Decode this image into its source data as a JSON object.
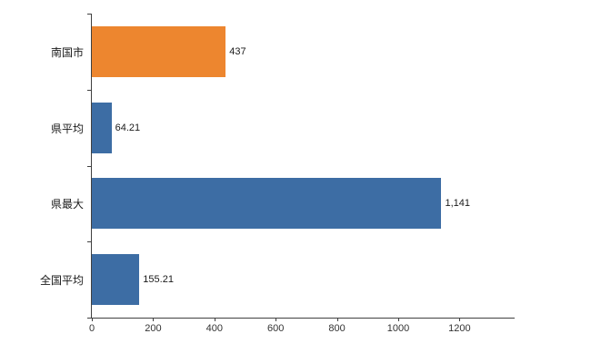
{
  "chart_data": {
    "type": "bar",
    "orientation": "horizontal",
    "title": "",
    "xlabel": "",
    "ylabel": "",
    "categories": [
      "南国市",
      "県平均",
      "県最大",
      "全国平均"
    ],
    "values": [
      437,
      64.21,
      1141,
      155.21
    ],
    "value_labels": [
      "437",
      "64.21",
      "1,141",
      "155.21"
    ],
    "bar_colors": [
      "#ED862F",
      "#3D6DA4",
      "#3D6DA4",
      "#3D6DA4"
    ],
    "x_ticks": [
      0,
      200,
      400,
      600,
      800,
      1000,
      1200
    ],
    "xlim": [
      0,
      1380
    ],
    "grid": false,
    "legend": "none",
    "background": "#ffffff",
    "axis_color": "#404040"
  }
}
